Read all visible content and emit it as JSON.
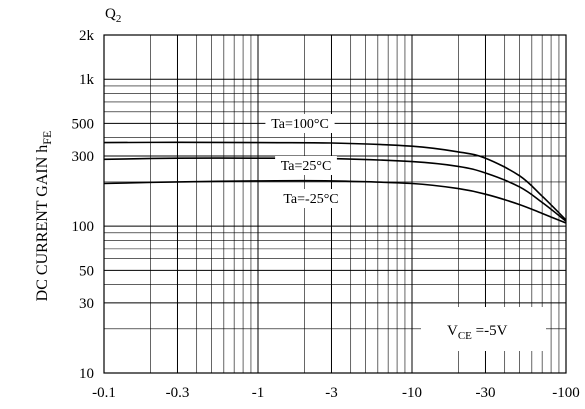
{
  "chart_data": {
    "type": "line",
    "panel_label": "Q",
    "panel_label_sub": "2",
    "ylabel": "DC CURRENT GAIN",
    "ylabel_symbol": "h",
    "ylabel_sub": "FE",
    "xlabel": "",
    "x_scale": "log",
    "y_scale": "log",
    "x_ticks": [
      {
        "label": "-0.1",
        "value": 0.1
      },
      {
        "label": "-0.3",
        "value": 0.3
      },
      {
        "label": "-1",
        "value": 1
      },
      {
        "label": "-3",
        "value": 3
      },
      {
        "label": "-10",
        "value": 10
      },
      {
        "label": "-30",
        "value": 30
      },
      {
        "label": "-100",
        "value": 100
      }
    ],
    "y_ticks": [
      {
        "label": "2k",
        "value": 2000
      },
      {
        "label": "1k",
        "value": 1000
      },
      {
        "label": "500",
        "value": 500
      },
      {
        "label": "300",
        "value": 300
      },
      {
        "label": "100",
        "value": 100
      },
      {
        "label": "50",
        "value": 50
      },
      {
        "label": "30",
        "value": 30
      },
      {
        "label": "10",
        "value": 10
      }
    ],
    "xlim": [
      0.1,
      100
    ],
    "ylim": [
      10,
      2000
    ],
    "grid": true,
    "condition": {
      "prefix": "V",
      "sub": "CE",
      "suffix": " =-5V"
    },
    "series": [
      {
        "name": "Ta=100°C",
        "x": [
          0.1,
          0.3,
          1,
          3,
          10,
          20,
          30,
          50,
          70,
          100
        ],
        "y": [
          370,
          372,
          370,
          368,
          350,
          320,
          290,
          220,
          160,
          110
        ]
      },
      {
        "name": "Ta=25°C",
        "x": [
          0.1,
          0.3,
          1,
          3,
          10,
          20,
          30,
          50,
          70,
          100
        ],
        "y": [
          285,
          290,
          290,
          288,
          275,
          255,
          230,
          185,
          145,
          108
        ]
      },
      {
        "name": "Ta=-25°C",
        "x": [
          0.1,
          0.3,
          1,
          3,
          10,
          20,
          30,
          50,
          70,
          100
        ],
        "y": [
          195,
          200,
          203,
          203,
          195,
          180,
          165,
          140,
          122,
          105
        ]
      }
    ]
  }
}
